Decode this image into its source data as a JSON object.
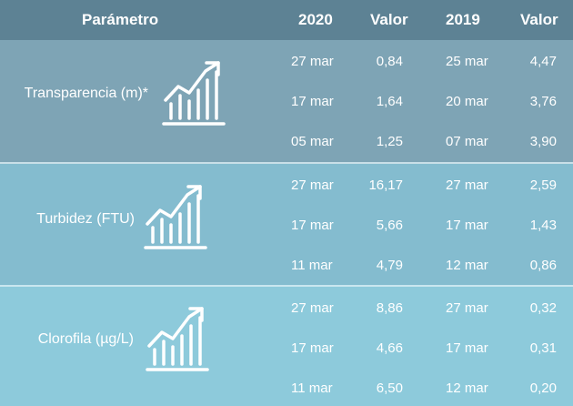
{
  "chart_data": {
    "type": "table",
    "columns": [
      "Parámetro",
      "2020",
      "Valor",
      "2019",
      "Valor"
    ],
    "rows": [
      {
        "parameter": "Transparencia (m)*",
        "entries": [
          {
            "date_2020": "27 mar",
            "value_2020": "0,84",
            "date_2019": "25 mar",
            "value_2019": "4,47"
          },
          {
            "date_2020": "17 mar",
            "value_2020": "1,64",
            "date_2019": "20 mar",
            "value_2019": "3,76"
          },
          {
            "date_2020": "05 mar",
            "value_2020": "1,25",
            "date_2019": "07 mar",
            "value_2019": "3,90"
          }
        ]
      },
      {
        "parameter": "Turbidez (FTU)",
        "entries": [
          {
            "date_2020": "27 mar",
            "value_2020": "16,17",
            "date_2019": "27 mar",
            "value_2019": "2,59"
          },
          {
            "date_2020": "17 mar",
            "value_2020": "5,66",
            "date_2019": "17 mar",
            "value_2019": "1,43"
          },
          {
            "date_2020": "11 mar",
            "value_2020": "4,79",
            "date_2019": "12 mar",
            "value_2019": "0,86"
          }
        ]
      },
      {
        "parameter": "Clorofila (µg/L)",
        "entries": [
          {
            "date_2020": "27 mar",
            "value_2020": "8,86",
            "date_2019": "27 mar",
            "value_2019": "0,32"
          },
          {
            "date_2020": "17 mar",
            "value_2020": "4,66",
            "date_2019": "17 mar",
            "value_2019": "0,31"
          },
          {
            "date_2020": "11 mar",
            "value_2020": "6,50",
            "date_2019": "12 mar",
            "value_2019": "0,20"
          }
        ]
      }
    ]
  },
  "icons": [
    "bar-chart-trend-up-icon"
  ],
  "colors": {
    "header": "#5d8294",
    "section_1": "#7ea4b5",
    "section_2": "#84bccf",
    "section_3": "#8dcadb",
    "text": "#ffffff"
  }
}
